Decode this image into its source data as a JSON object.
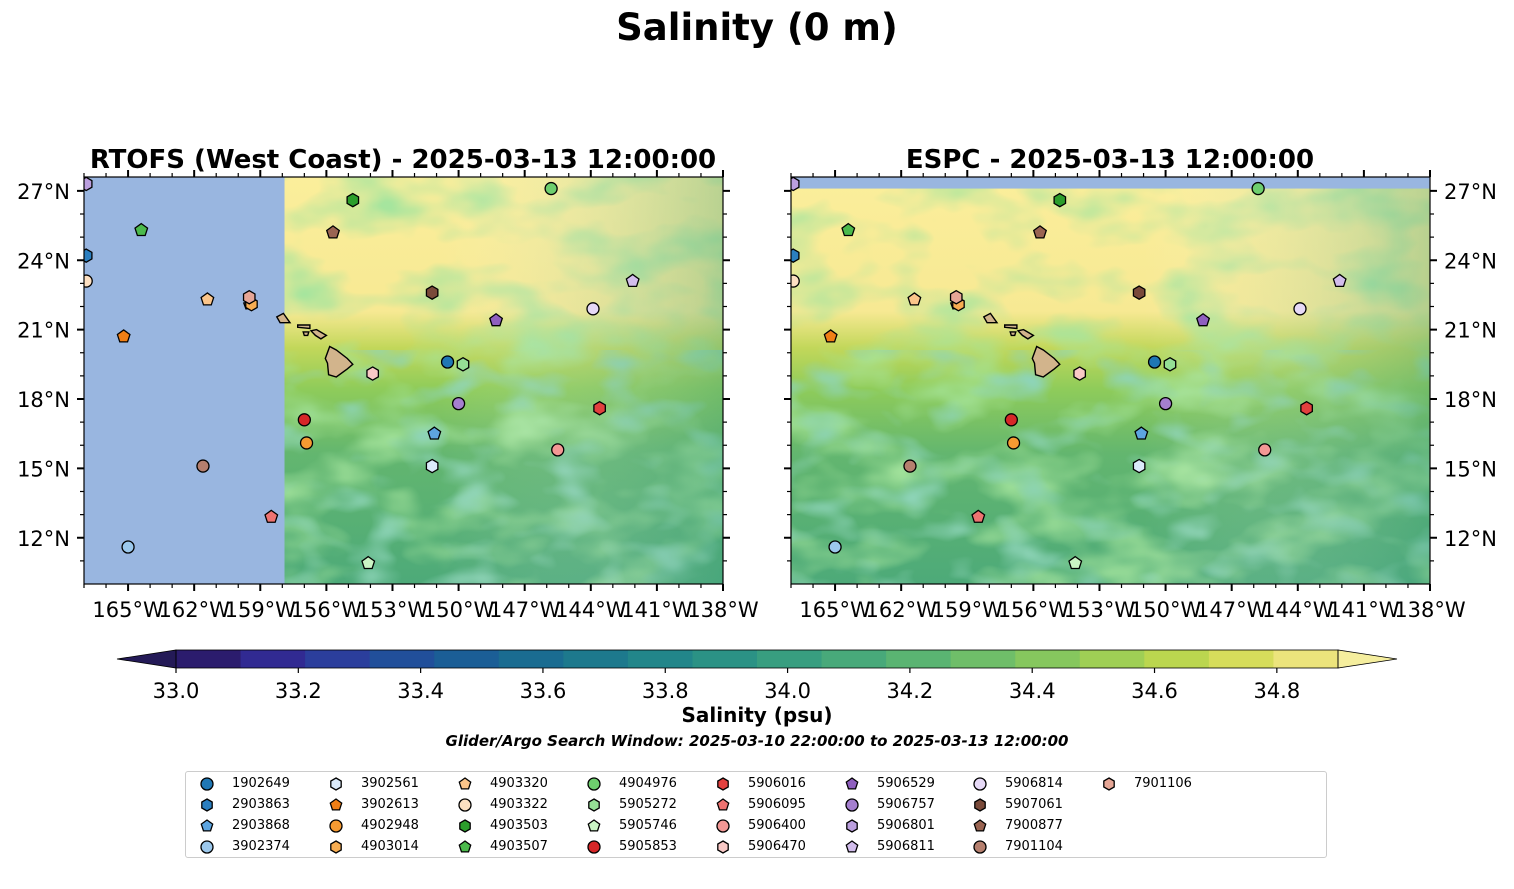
{
  "title": "Salinity (0 m)",
  "panels": [
    {
      "name": "rtofs",
      "title": "RTOFS (West Coast) - 2025-03-13 12:00:00"
    },
    {
      "name": "espc",
      "title": "ESPC - 2025-03-13 12:00:00"
    }
  ],
  "colorbar": {
    "label": "Salinity (psu)",
    "ticks": [
      "33.0",
      "33.2",
      "33.4",
      "33.6",
      "33.8",
      "34.0",
      "34.2",
      "34.4",
      "34.6",
      "34.8"
    ],
    "colors": [
      "#2b1c6d",
      "#312a92",
      "#2b3e9c",
      "#214f9a",
      "#1b5e96",
      "#1a6c91",
      "#1d798d",
      "#22868a",
      "#2b9285",
      "#389e80",
      "#48a97a",
      "#5ab472",
      "#6fbe69",
      "#86c75e",
      "#9fcf55",
      "#bbd64f",
      "#d6dd5b",
      "#ece47c"
    ],
    "under_color": "#241a57",
    "over_color": "#f5ee9e"
  },
  "search_window": "Glider/Argo Search Window: 2025-03-10 22:00:00 to 2025-03-13 12:00:00",
  "legend": [
    {
      "id": "1902649",
      "marker": "circle",
      "color": "#1f77b4"
    },
    {
      "id": "2903863",
      "marker": "hexagon",
      "color": "#2b7fc0"
    },
    {
      "id": "2903868",
      "marker": "pentagon",
      "color": "#5da5e0"
    },
    {
      "id": "3902374",
      "marker": "circle",
      "color": "#9cc8ec"
    },
    {
      "id": "3902561",
      "marker": "hexagon",
      "color": "#dbeafa"
    },
    {
      "id": "3902613",
      "marker": "pentagon",
      "color": "#f07f16"
    },
    {
      "id": "4902948",
      "marker": "circle",
      "color": "#f59a32"
    },
    {
      "id": "4903014",
      "marker": "hexagon",
      "color": "#f7ad52"
    },
    {
      "id": "4903320",
      "marker": "pentagon",
      "color": "#fbc58a"
    },
    {
      "id": "4903322",
      "marker": "circle",
      "color": "#fde0c2"
    },
    {
      "id": "4903503",
      "marker": "hexagon",
      "color": "#2c9e2c"
    },
    {
      "id": "4903507",
      "marker": "pentagon",
      "color": "#4cba4c"
    },
    {
      "id": "4904976",
      "marker": "circle",
      "color": "#6ece6e"
    },
    {
      "id": "5905272",
      "marker": "hexagon",
      "color": "#95df95"
    },
    {
      "id": "5905746",
      "marker": "pentagon",
      "color": "#cbf5c5"
    },
    {
      "id": "5905853",
      "marker": "circle",
      "color": "#d62728"
    },
    {
      "id": "5906016",
      "marker": "hexagon",
      "color": "#e2403e"
    },
    {
      "id": "5906095",
      "marker": "pentagon",
      "color": "#ee7371"
    },
    {
      "id": "5906400",
      "marker": "circle",
      "color": "#f39895"
    },
    {
      "id": "5906470",
      "marker": "hexagon",
      "color": "#f9c9c6"
    },
    {
      "id": "5906529",
      "marker": "pentagon",
      "color": "#8f5fbf"
    },
    {
      "id": "5906757",
      "marker": "circle",
      "color": "#a57fcf"
    },
    {
      "id": "5906801",
      "marker": "hexagon",
      "color": "#bb9fde"
    },
    {
      "id": "5906811",
      "marker": "pentagon",
      "color": "#d2bdec"
    },
    {
      "id": "5906814",
      "marker": "circle",
      "color": "#e6d9f6"
    },
    {
      "id": "5907061",
      "marker": "hexagon",
      "color": "#7a4a3a"
    },
    {
      "id": "7900877",
      "marker": "pentagon",
      "color": "#9a6452"
    },
    {
      "id": "7901104",
      "marker": "circle",
      "color": "#b57f6e"
    },
    {
      "id": "7901106",
      "marker": "hexagon",
      "color": "#e6a696"
    }
  ],
  "chart_data": {
    "type": "scatter",
    "subtype": "map",
    "xlim": [
      -167,
      -138
    ],
    "ylim": [
      10,
      27.6
    ],
    "xticks": [
      -165,
      -162,
      -159,
      -156,
      -153,
      -150,
      -147,
      -144,
      -141,
      -138
    ],
    "xtick_labels": [
      "165°W",
      "162°W",
      "159°W",
      "156°W",
      "153°W",
      "150°W",
      "147°W",
      "144°W",
      "141°W",
      "138°W"
    ],
    "yticks": [
      12,
      15,
      18,
      21,
      24,
      27
    ],
    "ytick_labels": [
      "12°N",
      "15°N",
      "18°N",
      "21°N",
      "24°N",
      "27°N"
    ],
    "rtofs_domain_west_edge_lon": -157.9,
    "espc_missing_above_lat": 27.1,
    "missing_color": "#99b6e0",
    "land_color": "#d2b48c",
    "floats": [
      {
        "id": "1902649",
        "lon": -150.5,
        "lat": 19.6
      },
      {
        "id": "2903863",
        "lon": -166.9,
        "lat": 24.2
      },
      {
        "id": "2903868",
        "lon": -151.1,
        "lat": 16.5
      },
      {
        "id": "3902374",
        "lon": -165.0,
        "lat": 11.6
      },
      {
        "id": "3902561",
        "lon": -151.2,
        "lat": 15.1
      },
      {
        "id": "3902613",
        "lon": -165.2,
        "lat": 20.7
      },
      {
        "id": "4902948",
        "lon": -156.9,
        "lat": 16.1
      },
      {
        "id": "4903014",
        "lon": -159.4,
        "lat": 22.1
      },
      {
        "id": "4903320",
        "lon": -161.4,
        "lat": 22.3
      },
      {
        "id": "4903322",
        "lon": -166.9,
        "lat": 23.1
      },
      {
        "id": "4903503",
        "lon": -154.8,
        "lat": 26.6
      },
      {
        "id": "4903507",
        "lon": -164.4,
        "lat": 25.3
      },
      {
        "id": "4904976",
        "lon": -145.8,
        "lat": 27.1
      },
      {
        "id": "5905272",
        "lon": -149.8,
        "lat": 19.5
      },
      {
        "id": "5905746",
        "lon": -154.1,
        "lat": 10.9
      },
      {
        "id": "5905853",
        "lon": -157.0,
        "lat": 17.1
      },
      {
        "id": "5906016",
        "lon": -143.6,
        "lat": 17.6
      },
      {
        "id": "5906095",
        "lon": -158.5,
        "lat": 12.9
      },
      {
        "id": "5906400",
        "lon": -145.5,
        "lat": 15.8
      },
      {
        "id": "5906470",
        "lon": -153.9,
        "lat": 19.1
      },
      {
        "id": "5906529",
        "lon": -148.3,
        "lat": 21.4
      },
      {
        "id": "5906757",
        "lon": -150.0,
        "lat": 17.8
      },
      {
        "id": "5906801",
        "lon": -166.9,
        "lat": 27.3
      },
      {
        "id": "5906811",
        "lon": -142.1,
        "lat": 23.1
      },
      {
        "id": "5906814",
        "lon": -143.9,
        "lat": 21.9
      },
      {
        "id": "5907061",
        "lon": -151.2,
        "lat": 22.6
      },
      {
        "id": "7900877",
        "lon": -155.7,
        "lat": 25.2
      },
      {
        "id": "7901104",
        "lon": -161.6,
        "lat": 15.1
      },
      {
        "id": "7901106",
        "lon": -159.5,
        "lat": 22.4
      }
    ]
  }
}
